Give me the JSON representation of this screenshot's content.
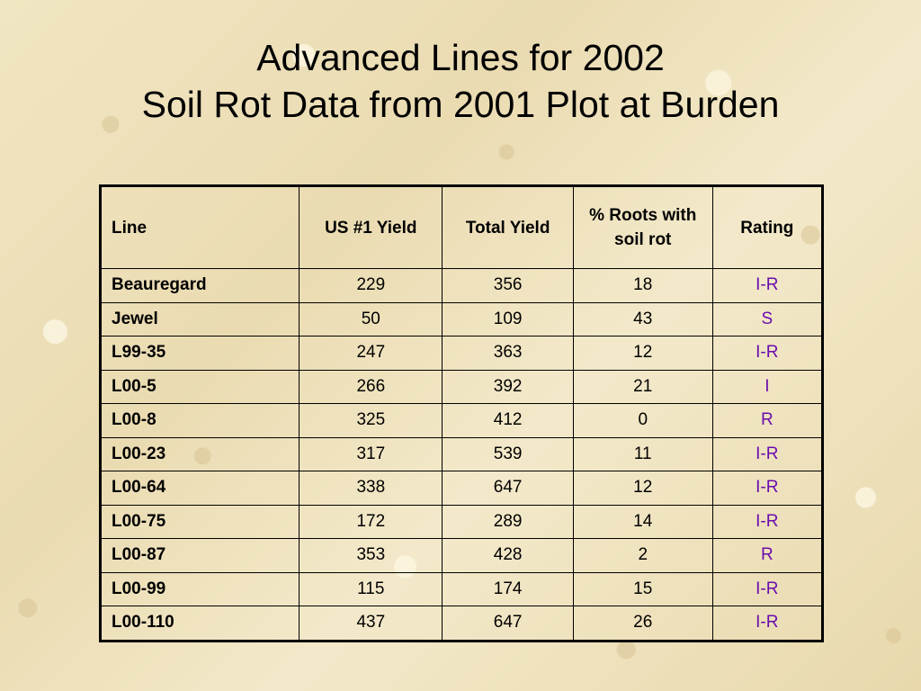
{
  "slide": {
    "title_line1": "Advanced Lines for 2002",
    "title_line2": "Soil Rot Data from 2001 Plot at Burden"
  },
  "table": {
    "headers": [
      "Line",
      "US #1 Yield",
      "Total Yield",
      "% Roots with soil rot",
      "Rating"
    ],
    "rating_color": "#6a0dad",
    "rows": [
      [
        "Beauregard",
        "229",
        "356",
        "18",
        "I-R"
      ],
      [
        "Jewel",
        "50",
        "109",
        "43",
        "S"
      ],
      [
        "L99-35",
        "247",
        "363",
        "12",
        "I-R"
      ],
      [
        "L00-5",
        "266",
        "392",
        "21",
        "I"
      ],
      [
        "L00-8",
        "325",
        "412",
        "0",
        "R"
      ],
      [
        "L00-23",
        "317",
        "539",
        "11",
        "I-R"
      ],
      [
        "L00-64",
        "338",
        "647",
        "12",
        "I-R"
      ],
      [
        "L00-75",
        "172",
        "289",
        "14",
        "I-R"
      ],
      [
        "L00-87",
        "353",
        "428",
        "2",
        "R"
      ],
      [
        "L00-99",
        "115",
        "174",
        "15",
        "I-R"
      ],
      [
        "L00-110",
        "437",
        "647",
        "26",
        "I-R"
      ]
    ]
  }
}
